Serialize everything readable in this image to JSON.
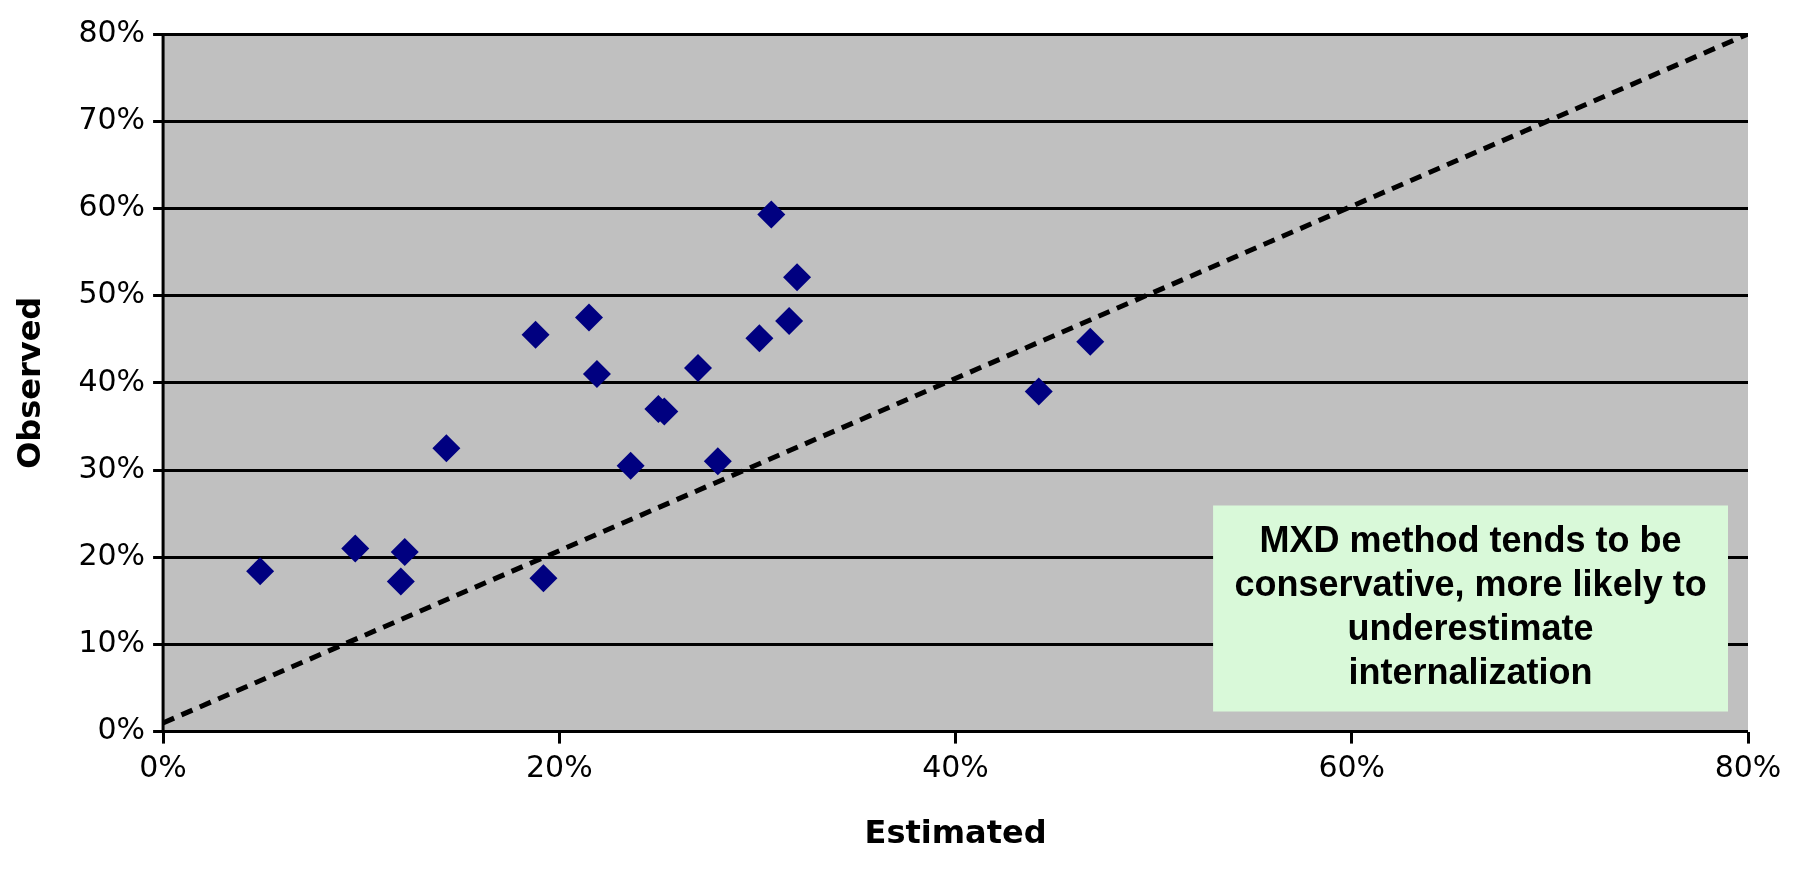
{
  "chart_data": {
    "type": "scatter",
    "xlabel": "Estimated",
    "ylabel": "Observed",
    "xlim": [
      0,
      80
    ],
    "ylim": [
      0,
      80
    ],
    "xticks": [
      {
        "value": 0,
        "label": "0%"
      },
      {
        "value": 20,
        "label": "20%"
      },
      {
        "value": 40,
        "label": "40%"
      },
      {
        "value": 60,
        "label": "60%"
      },
      {
        "value": 80,
        "label": "80%"
      }
    ],
    "yticks": [
      {
        "value": 0,
        "label": "0%"
      },
      {
        "value": 10,
        "label": "10%"
      },
      {
        "value": 20,
        "label": "20%"
      },
      {
        "value": 30,
        "label": "30%"
      },
      {
        "value": 40,
        "label": "40%"
      },
      {
        "value": 50,
        "label": "50%"
      },
      {
        "value": 60,
        "label": "60%"
      },
      {
        "value": 70,
        "label": "70%"
      },
      {
        "value": 80,
        "label": "80%"
      }
    ],
    "grid": "y",
    "legend": false,
    "series": [
      {
        "type": "scatter",
        "color": "#000080",
        "marker": "diamond",
        "x": [
          4.9,
          9.7,
          12.2,
          12.0,
          14.3,
          18.8,
          19.2,
          21.5,
          21.9,
          23.6,
          25.0,
          25.3,
          27.0,
          28.0,
          30.1,
          30.7,
          31.6,
          32.0,
          44.2,
          46.8
        ],
        "values": [
          18.4,
          21.0,
          20.6,
          17.2,
          32.5,
          45.5,
          17.6,
          47.5,
          41.0,
          30.5,
          37.0,
          36.7,
          41.7,
          31.0,
          45.1,
          59.3,
          47.1,
          52.1,
          39.0,
          44.7
        ]
      },
      {
        "type": "line",
        "color": "#000000",
        "marker": "none",
        "line_style": "dashed",
        "x": [
          0,
          80
        ],
        "values": [
          1,
          80
        ]
      }
    ],
    "annotations": [
      "MXD method tends to be conservative, more likely to underestimate internalization"
    ]
  }
}
